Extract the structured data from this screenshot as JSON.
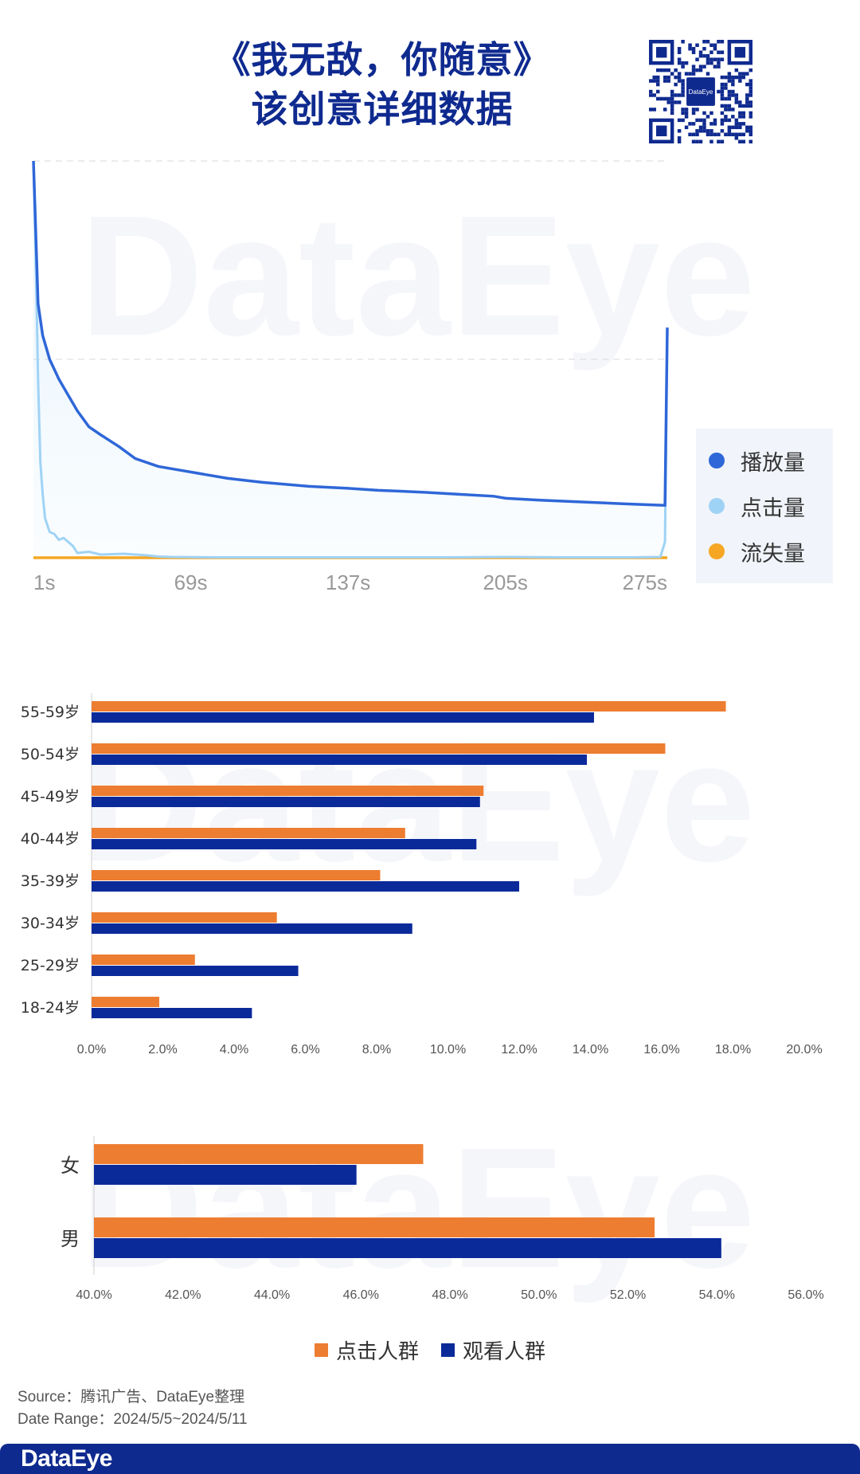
{
  "header": {
    "title_line1": "《我无敌，你随意》",
    "title_line2": "该创意详细数据"
  },
  "qr": {
    "center_label": "DataEye"
  },
  "watermark": {
    "text": "DataEye"
  },
  "colors": {
    "play": "#2f67d8",
    "click": "#9fd3f5",
    "churn": "#f5a623",
    "orange": "#ed7d31",
    "navy": "#0a2a9a",
    "brand": "#0f2a8f"
  },
  "chart_data": [
    {
      "type": "line",
      "x_tick_labels": [
        "1s",
        "69s",
        "137s",
        "205s",
        "275s"
      ],
      "x_ticks": [
        1,
        69,
        137,
        205,
        275
      ],
      "xlim": [
        1,
        275
      ],
      "ylim": [
        0,
        1
      ],
      "grid": true,
      "legend_position": "right",
      "series": [
        {
          "name": "播放量",
          "color": "#2f67d8",
          "x": [
            1,
            3,
            5,
            8,
            12,
            16,
            20,
            25,
            30,
            38,
            45,
            55,
            65,
            75,
            85,
            100,
            120,
            137,
            150,
            170,
            185,
            200,
            205,
            220,
            240,
            260,
            274,
            275
          ],
          "y": [
            1.0,
            0.64,
            0.56,
            0.5,
            0.45,
            0.41,
            0.37,
            0.33,
            0.31,
            0.28,
            0.25,
            0.23,
            0.22,
            0.21,
            0.2,
            0.19,
            0.18,
            0.175,
            0.17,
            0.165,
            0.16,
            0.155,
            0.15,
            0.145,
            0.14,
            0.135,
            0.132,
            0.58
          ]
        },
        {
          "name": "点击量",
          "color": "#9fd3f5",
          "x": [
            1,
            2,
            3,
            4,
            5,
            6,
            8,
            10,
            12,
            14,
            16,
            18,
            20,
            25,
            30,
            40,
            50,
            55,
            60,
            80,
            100,
            137,
            180,
            205,
            230,
            260,
            272,
            274,
            275
          ],
          "y": [
            1.0,
            0.75,
            0.45,
            0.24,
            0.16,
            0.1,
            0.065,
            0.06,
            0.045,
            0.05,
            0.04,
            0.03,
            0.012,
            0.015,
            0.008,
            0.01,
            0.006,
            0.003,
            0.002,
            0.001,
            0.001,
            0.001,
            0.001,
            0.002,
            0.001,
            0.001,
            0.002,
            0.04,
            0.58
          ]
        },
        {
          "name": "流失量",
          "color": "#f5a623",
          "x": [
            1,
            275
          ],
          "y": [
            0.0,
            0.0
          ]
        }
      ]
    },
    {
      "type": "bar",
      "orientation": "horizontal",
      "categories": [
        "55-59岁",
        "50-54岁",
        "45-49岁",
        "40-44岁",
        "35-39岁",
        "30-34岁",
        "25-29岁",
        "18-24岁"
      ],
      "xlim": [
        0,
        20
      ],
      "x_ticks": [
        "0.0%",
        "2.0%",
        "4.0%",
        "6.0%",
        "8.0%",
        "10.0%",
        "12.0%",
        "14.0%",
        "16.0%",
        "18.0%",
        "20.0%"
      ],
      "series": [
        {
          "name": "点击人群",
          "color": "#ed7d31",
          "values": [
            17.8,
            16.1,
            11.0,
            8.8,
            8.1,
            5.2,
            2.9,
            1.9
          ]
        },
        {
          "name": "观看人群",
          "color": "#0a2a9a",
          "values": [
            14.1,
            13.9,
            10.9,
            10.8,
            12.0,
            9.0,
            5.8,
            4.5
          ]
        }
      ]
    },
    {
      "type": "bar",
      "orientation": "horizontal",
      "categories": [
        "女",
        "男"
      ],
      "xlim": [
        40,
        56
      ],
      "x_ticks": [
        "40.0%",
        "42.0%",
        "44.0%",
        "46.0%",
        "48.0%",
        "50.0%",
        "52.0%",
        "54.0%",
        "56.0%"
      ],
      "series": [
        {
          "name": "点击人群",
          "color": "#ed7d31",
          "values": [
            47.4,
            52.6
          ]
        },
        {
          "name": "观看人群",
          "color": "#0a2a9a",
          "values": [
            45.9,
            54.1
          ]
        }
      ]
    }
  ],
  "bottom_legend": [
    {
      "label": "点击人群",
      "color": "#ed7d31"
    },
    {
      "label": "观看人群",
      "color": "#0a2a9a"
    }
  ],
  "source": {
    "line1": "Source：腾讯广告、DataEye整理",
    "line2": "Date Range：2024/5/5~2024/5/11"
  },
  "footer": {
    "logo": "DataEye"
  }
}
